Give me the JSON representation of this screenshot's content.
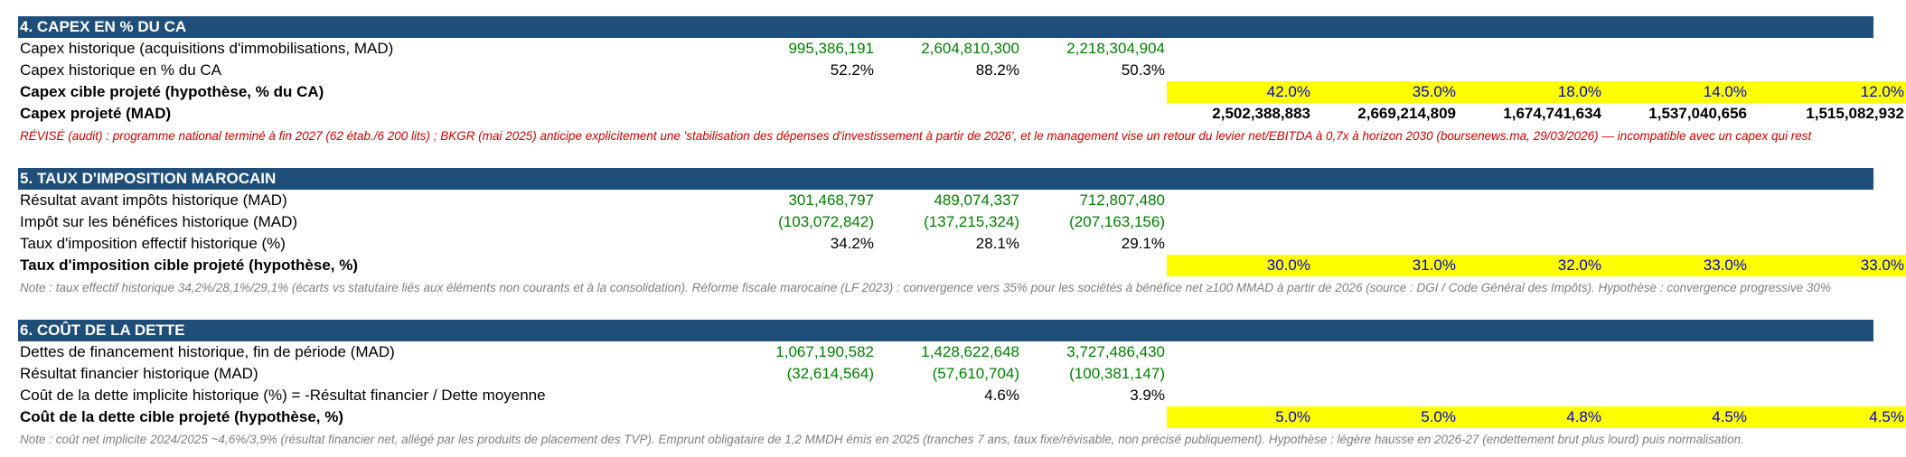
{
  "sections": [
    {
      "title": "4. CAPEX EN % DU CA",
      "rows": [
        {
          "label": "Capex historique (acquisitions d'immobilisations, MAD)",
          "h": [
            "995,386,191",
            "2,604,810,300",
            "2,218,304,904"
          ],
          "p": [
            "",
            "",
            "",
            "",
            ""
          ]
        },
        {
          "label": "Capex historique en % du CA",
          "h": [
            "52.2%",
            "88.2%",
            "50.3%"
          ],
          "p": [
            "",
            "",
            "",
            "",
            ""
          ]
        },
        {
          "label": "Capex cible projeté (hypothèse, % du CA)",
          "h": [
            "",
            "",
            ""
          ],
          "p": [
            "42.0%",
            "35.0%",
            "18.0%",
            "14.0%",
            "12.0%"
          ]
        },
        {
          "label": "Capex projeté (MAD)",
          "h": [
            "",
            "",
            ""
          ],
          "p": [
            "2,502,388,883",
            "2,669,214,809",
            "1,674,741,634",
            "1,537,040,656",
            "1,515,082,932"
          ]
        }
      ],
      "note": "RÉVISÉ (audit) : programme national terminé à fin 2027 (62 étab./6 200 lits) ; BKGR (mai 2025) anticipe explicitement une 'stabilisation des dépenses d'investissement à partir de 2026', et le management vise un retour du levier net/EBITDA à 0,7x à horizon 2030 (boursenews.ma, 29/03/2026) — incompatible avec un capex qui rest"
    },
    {
      "title": "5. TAUX D'IMPOSITION MAROCAIN",
      "rows": [
        {
          "label": "Résultat avant impôts historique (MAD)",
          "h": [
            "301,468,797",
            "489,074,337",
            "712,807,480"
          ],
          "p": [
            "",
            "",
            "",
            "",
            ""
          ]
        },
        {
          "label": "Impôt sur les bénéfices historique (MAD)",
          "h": [
            "(103,072,842)",
            "(137,215,324)",
            "(207,163,156)"
          ],
          "p": [
            "",
            "",
            "",
            "",
            ""
          ]
        },
        {
          "label": "Taux d'imposition effectif historique (%)",
          "h": [
            "34.2%",
            "28.1%",
            "29.1%"
          ],
          "p": [
            "",
            "",
            "",
            "",
            ""
          ]
        },
        {
          "label": "Taux d'imposition cible projeté (hypothèse, %)",
          "h": [
            "",
            "",
            ""
          ],
          "p": [
            "30.0%",
            "31.0%",
            "32.0%",
            "33.0%",
            "33.0%"
          ]
        }
      ],
      "note": "Note : taux effectif historique 34,2%/28,1%/29,1% (écarts vs statutaire liés aux éléments non courants et à la consolidation). Réforme fiscale marocaine (LF 2023) : convergence vers 35% pour les sociétés à bénéfice net ≥100 MMAD à partir de 2026 (source : DGI / Code Général des Impôts). Hypothèse : convergence progressive 30%"
    },
    {
      "title": "6. COÛT DE LA DETTE",
      "rows": [
        {
          "label": "Dettes de financement historique, fin de période (MAD)",
          "h": [
            "1,067,190,582",
            "1,428,622,648",
            "3,727,486,430"
          ],
          "p": [
            "",
            "",
            "",
            "",
            ""
          ]
        },
        {
          "label": "Résultat financier historique (MAD)",
          "h": [
            "(32,614,564)",
            "(57,610,704)",
            "(100,381,147)"
          ],
          "p": [
            "",
            "",
            "",
            "",
            ""
          ]
        },
        {
          "label": "Coût de la dette implicite historique (%) = -Résultat financier / Dette moyenne",
          "h": [
            "",
            "4.6%",
            "3.9%"
          ],
          "p": [
            "",
            "",
            "",
            "",
            ""
          ]
        },
        {
          "label": "Coût de la dette cible projeté (hypothèse, %)",
          "h": [
            "",
            "",
            ""
          ],
          "p": [
            "5.0%",
            "5.0%",
            "4.8%",
            "4.5%",
            "4.5%"
          ]
        }
      ],
      "note": "Note : coût net implicite 2024/2025 ~4,6%/3,9% (résultat financier net, allégé par les produits de placement des TVP). Emprunt obligataire de 1,2 MMDH émis en 2025 (tranches 7 ans, taux fixe/révisable, non précisé publiquement). Hypothèse : légère hausse en 2026-27 (endettement brut plus lourd) puis normalisation."
    }
  ]
}
